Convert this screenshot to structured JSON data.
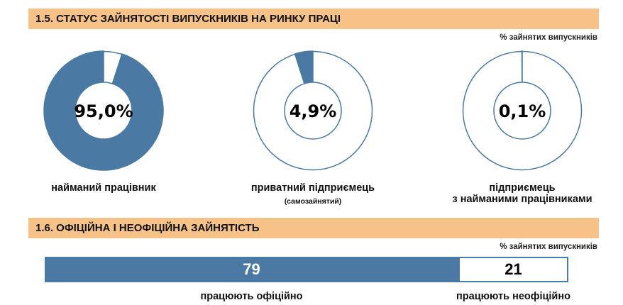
{
  "colors": {
    "accent": "#4a7aa3",
    "header_bg": "#f6c287",
    "ring": "#4a7aa3"
  },
  "section1": {
    "title": "1.5. СТАТУС ЗАЙНЯТОСТІ ВИПУСКНИКІВ НА РИНКУ ПРАЦІ",
    "unit_note": "% зайнятих випускників"
  },
  "section2": {
    "title": "1.6. ОФІЦІЙНА І НЕОФІЦІЙНА ЗАЙНЯТІСТЬ",
    "unit_note": "% зайнятих випускників"
  },
  "chart_data": [
    {
      "type": "pie",
      "variant": "donut",
      "items": [
        {
          "label": "найманий працівник",
          "sublabel": "",
          "value": 95.0,
          "display": "95,0%"
        },
        {
          "label": "приватний підприємець",
          "sublabel": "(самозайнятий)",
          "value": 4.9,
          "display": "4,9%"
        },
        {
          "label": "підприємець\nз найманими працівниками",
          "sublabel": "",
          "value": 0.1,
          "display": "0,1%"
        }
      ]
    },
    {
      "type": "bar",
      "variant": "stacked-horizontal",
      "categories": [
        "працюють офіційно",
        "працюють неофіційно"
      ],
      "values": [
        79,
        21
      ],
      "display": [
        "79",
        "21"
      ]
    }
  ]
}
